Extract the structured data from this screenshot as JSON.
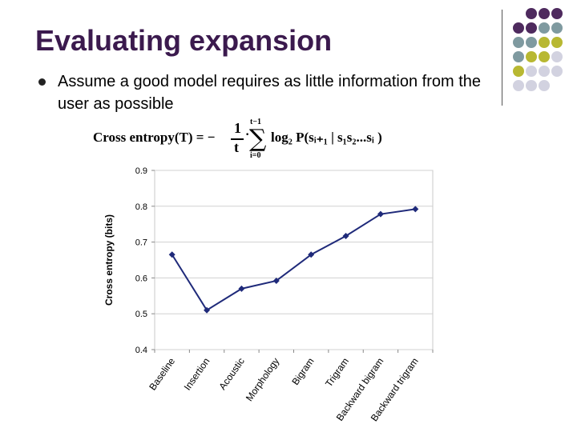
{
  "slide": {
    "title": "Evaluating expansion",
    "bullet": "Assume a good model requires as little information from the user as possible"
  },
  "formula": {
    "lhs": "Cross entropy(T) = −",
    "frac_num": "1",
    "frac_den": "t",
    "dot": "·",
    "sum_upper": "t−1",
    "sum_lower": "i=0",
    "rhs": "log₂ P(sᵢ₊₁ | s₁s₂...sᵢ )"
  },
  "decor": {
    "colors": [
      "#4e2a5e",
      "#7f9aa0",
      "#b8b832",
      "#d2d2e0"
    ]
  },
  "chart_data": {
    "type": "line",
    "categories": [
      "Baseline",
      "Insertion",
      "Acoustic",
      "Morphology",
      "Bigram",
      "Trigram",
      "Backward bigram",
      "Backward trigram"
    ],
    "values": [
      0.665,
      0.51,
      0.57,
      0.592,
      0.665,
      0.717,
      0.778,
      0.792
    ],
    "ylabel": "Cross entropy (bits)",
    "xlabel": "",
    "ylim": [
      0.4,
      0.9
    ],
    "yticks": [
      "0.4",
      "0.5",
      "0.6",
      "0.7",
      "0.8",
      "0.9"
    ],
    "grid": true,
    "color": "#1f2a7a"
  }
}
